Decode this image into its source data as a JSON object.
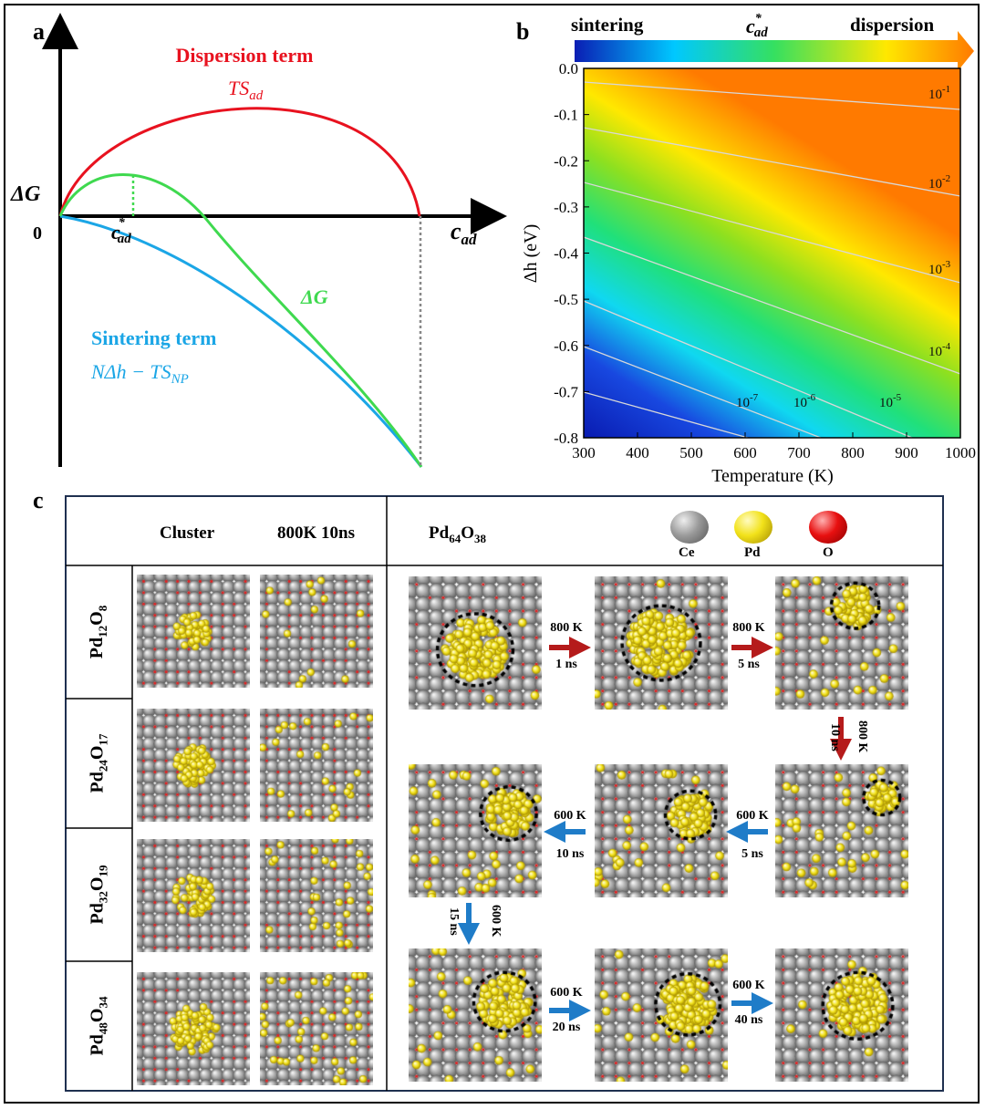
{
  "panel_a": {
    "label": "a",
    "dispersion_title": "Dispersion term",
    "dispersion_formula": "TS",
    "dispersion_sub": "ad",
    "sintering_title": "Sintering term",
    "sintering_formula": "NΔh − TS",
    "sintering_sub": "NP",
    "dg_axis": "ΔG",
    "dg_curve": "ΔG",
    "origin": "0",
    "x_axis": "c",
    "x_axis_sub": "ad",
    "cstar": "c",
    "cstar_sup": "*",
    "cstar_sub": "ad",
    "colors": {
      "dispersion": "#e8121f",
      "sintering": "#1ba6e6",
      "dg": "#3fd94f"
    }
  },
  "panel_b": {
    "label": "b",
    "bar_left": "sintering",
    "bar_mid": "c",
    "bar_mid_sup": "*",
    "bar_mid_sub": "ad",
    "bar_right": "dispersion",
    "ylabel": "Δh (eV)",
    "xlabel": "Temperature (K)",
    "xticks": [
      "300",
      "400",
      "500",
      "600",
      "700",
      "800",
      "900",
      "1000"
    ],
    "yticks": [
      "0.0",
      "-0.1",
      "-0.2",
      "-0.3",
      "-0.4",
      "-0.5",
      "-0.6",
      "-0.7",
      "-0.8"
    ],
    "contours": [
      {
        "base": "10",
        "exp": "-1"
      },
      {
        "base": "10",
        "exp": "-2"
      },
      {
        "base": "10",
        "exp": "-3"
      },
      {
        "base": "10",
        "exp": "-4"
      },
      {
        "base": "10",
        "exp": "-5"
      },
      {
        "base": "10",
        "exp": "-6"
      },
      {
        "base": "10",
        "exp": "-7"
      }
    ]
  },
  "chart_data": {
    "type": "heatmap",
    "xlabel": "Temperature (K)",
    "ylabel": "Δh (eV)",
    "xlim": [
      300,
      1000
    ],
    "ylim": [
      -0.8,
      0.0
    ],
    "colorbar": [
      "sintering",
      "c*ad",
      "dispersion"
    ],
    "contour_levels": [
      "10^-1",
      "10^-2",
      "10^-3",
      "10^-4",
      "10^-5",
      "10^-6",
      "10^-7"
    ]
  },
  "panel_c": {
    "label": "c",
    "col_cluster": "Cluster",
    "col_md": "800K 10ns",
    "col_big": "Pd",
    "col_big_sub1": "64",
    "col_big_o": "O",
    "col_big_sub2": "38",
    "legend": [
      {
        "name": "Ce",
        "color": "#9a9a9a"
      },
      {
        "name": "Pd",
        "color": "#f2e21a"
      },
      {
        "name": "O",
        "color": "#e81010"
      }
    ],
    "rows": [
      {
        "pd": "12",
        "o": "8",
        "cluster_r": 0.18,
        "dispersed": 0.22
      },
      {
        "pd": "24",
        "o": "17",
        "cluster_r": 0.2,
        "dispersed": 0.35
      },
      {
        "pd": "32",
        "o": "19",
        "cluster_r": 0.2,
        "dispersed": 0.45
      },
      {
        "pd": "48",
        "o": "34",
        "cluster_r": 0.25,
        "dispersed": 0.6
      }
    ],
    "steps": [
      {
        "temp": "800 K",
        "time": "1 ns",
        "color": "#b51b1b"
      },
      {
        "temp": "800 K",
        "time": "5 ns",
        "color": "#b51b1b"
      },
      {
        "temp": "800 K",
        "time": "10 ns",
        "color": "#b51b1b"
      },
      {
        "temp": "600 K",
        "time": "5 ns",
        "color": "#1f7cc8"
      },
      {
        "temp": "600 K",
        "time": "10 ns",
        "color": "#1f7cc8"
      },
      {
        "temp": "600 K",
        "time": "15 ns",
        "color": "#1f7cc8"
      },
      {
        "temp": "600 K",
        "time": "20 ns",
        "color": "#1f7cc8"
      },
      {
        "temp": "600 K",
        "time": "40 ns",
        "color": "#1f7cc8"
      }
    ]
  }
}
